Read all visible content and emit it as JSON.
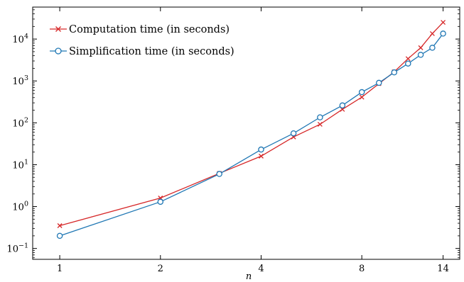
{
  "chart_data": {
    "type": "line",
    "xlabel": "n",
    "ylabel": "",
    "x_scale": "log2",
    "y_scale": "log10",
    "xlim": [
      0.83,
      15.7
    ],
    "ylim": [
      0.055,
      58000
    ],
    "x_ticks": [
      {
        "value": 1,
        "label": "1"
      },
      {
        "value": 2,
        "label": "2"
      },
      {
        "value": 4,
        "label": "4"
      },
      {
        "value": 8,
        "label": "8"
      },
      {
        "value": 14,
        "label": "14"
      }
    ],
    "y_ticks": [
      {
        "value": 0.1,
        "base": "10",
        "exp": "−1"
      },
      {
        "value": 1,
        "base": "10",
        "exp": "0"
      },
      {
        "value": 10,
        "base": "10",
        "exp": "1"
      },
      {
        "value": 100,
        "base": "10",
        "exp": "2"
      },
      {
        "value": 1000,
        "base": "10",
        "exp": "3"
      },
      {
        "value": 10000,
        "base": "10",
        "exp": "4"
      }
    ],
    "legend_position": "top-left",
    "grid": false,
    "series": [
      {
        "name": "Computation time (in seconds)",
        "color": "#d62728",
        "marker": "x",
        "x": [
          1,
          2,
          3,
          4,
          5,
          6,
          7,
          8,
          9,
          10,
          11,
          12,
          13,
          14
        ],
        "y": [
          0.35,
          1.6,
          6.2,
          16,
          46,
          92,
          210,
          410,
          860,
          1650,
          3400,
          6200,
          13500,
          25000
        ]
      },
      {
        "name": "Simplification time (in seconds)",
        "color": "#1f77b4",
        "marker": "o",
        "x": [
          1,
          2,
          3,
          4,
          5,
          6,
          7,
          8,
          9,
          10,
          11,
          12,
          13,
          14
        ],
        "y": [
          0.2,
          1.3,
          6.0,
          23,
          56,
          135,
          260,
          540,
          900,
          1600,
          2600,
          4200,
          6200,
          13500
        ]
      }
    ]
  }
}
